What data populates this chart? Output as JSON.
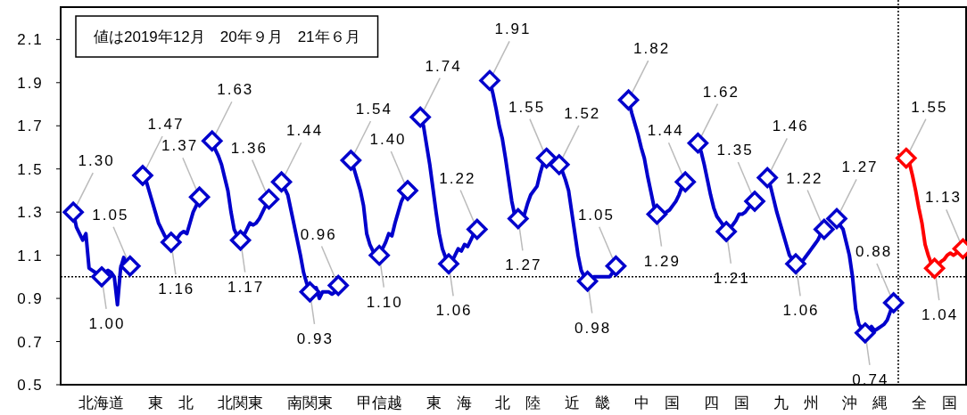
{
  "chart_data": {
    "type": "line",
    "annotations": [
      "値は2019年12月　20年９月　21年６月"
    ],
    "ylim": [
      0.5,
      2.25
    ],
    "categories": [
      null,
      null,
      null,
      null,
      null,
      null,
      null,
      null,
      null,
      "北海道",
      null,
      null,
      null,
      null,
      null,
      null,
      null,
      null,
      null,
      null,
      null,
      null,
      null,
      null,
      null,
      null,
      null,
      null,
      null,
      null,
      null,
      "東　北",
      null,
      null,
      null,
      null,
      null,
      null,
      null,
      null,
      null,
      null,
      null,
      null,
      null,
      null,
      null,
      null,
      null,
      null,
      null,
      null,
      null,
      "北関東",
      null,
      null,
      null,
      null,
      null,
      null,
      null,
      null,
      null,
      null,
      null,
      null,
      null,
      null,
      null,
      null,
      null,
      null,
      null,
      null,
      null,
      "南関東",
      null,
      null,
      null,
      null,
      null,
      null,
      null,
      null,
      null,
      null,
      null,
      null,
      null,
      null,
      null,
      null,
      null,
      null,
      null,
      null,
      null,
      "甲信越",
      null,
      null,
      null,
      null,
      null,
      null,
      null,
      null,
      null,
      null,
      null,
      null,
      null,
      null,
      null,
      null,
      null,
      null,
      null,
      null,
      null,
      "東　海",
      null,
      null,
      null,
      null,
      null,
      null,
      null,
      null,
      null,
      null,
      null,
      null,
      null,
      null,
      null,
      null,
      null,
      null,
      null,
      null,
      null,
      "北　陸",
      null,
      null,
      null,
      null,
      null,
      null,
      null,
      null,
      null,
      null,
      null,
      null,
      null,
      null,
      null,
      null,
      null,
      null,
      null,
      null,
      null,
      "近　畿",
      null,
      null,
      null,
      null,
      null,
      null,
      null,
      null,
      null,
      null,
      null,
      null,
      null,
      null,
      null,
      null,
      null,
      null,
      null,
      null,
      null,
      "中　国",
      null,
      null,
      null,
      null,
      null,
      null,
      null,
      null,
      null,
      null,
      null,
      null,
      null,
      null,
      null,
      null,
      null,
      null,
      null,
      null,
      null,
      "四　国",
      null,
      null,
      null,
      null,
      null,
      null,
      null,
      null,
      null,
      null,
      null,
      null,
      null,
      null,
      null,
      null,
      null,
      null,
      null,
      null,
      null,
      "九　州",
      null,
      null,
      null,
      null,
      null,
      null,
      null,
      null,
      null,
      null,
      null,
      null,
      null,
      null,
      null,
      null,
      null,
      null,
      null,
      null,
      null,
      "沖　縄",
      null,
      null,
      null,
      null,
      null,
      null,
      null,
      null,
      null,
      null,
      null,
      null,
      null,
      null,
      null,
      null,
      null,
      null,
      null,
      null,
      null,
      "全　国",
      null,
      null,
      null,
      null,
      null,
      null,
      null,
      null,
      null
    ],
    "yticks": [
      0.5,
      0.7,
      0.9,
      1.1,
      1.3,
      1.5,
      1.7,
      1.9,
      2.1
    ],
    "ref_lines": [
      {
        "axis": "y",
        "value": 1,
        "color": "#000000",
        "line_style": "dotted"
      }
    ],
    "series": [
      {
        "color": "#0000cc",
        "values": [
          1.3,
          1.23,
          1.2,
          1.17,
          1.2,
          1.04,
          1.03,
          1.02,
          1.01,
          1.0,
          1.02,
          1.03,
          1.02,
          1.0,
          0.87,
          1.04,
          1.09,
          1.06,
          1.05,
          null,
          null,
          null,
          1.47,
          1.45,
          1.4,
          1.35,
          1.3,
          1.25,
          1.22,
          1.19,
          1.17,
          1.16,
          1.17,
          1.18,
          1.2,
          1.21,
          1.2,
          1.25,
          1.3,
          1.33,
          1.37,
          null,
          null,
          null,
          1.63,
          1.59,
          1.56,
          1.52,
          1.46,
          1.4,
          1.3,
          1.22,
          1.19,
          1.17,
          1.19,
          1.22,
          1.25,
          1.24,
          1.25,
          1.27,
          1.3,
          1.33,
          1.36,
          null,
          null,
          null,
          1.44,
          1.41,
          1.38,
          1.31,
          1.24,
          1.17,
          1.1,
          1.02,
          0.97,
          0.93,
          0.92,
          0.95,
          0.9,
          0.93,
          0.93,
          0.93,
          0.92,
          0.93,
          0.96,
          null,
          null,
          null,
          1.54,
          1.5,
          1.45,
          1.4,
          1.33,
          1.2,
          1.15,
          1.12,
          1.11,
          1.1,
          1.13,
          1.16,
          1.2,
          1.19,
          1.25,
          1.3,
          1.35,
          1.38,
          1.4,
          null,
          null,
          null,
          1.74,
          1.7,
          1.61,
          1.52,
          1.41,
          1.3,
          1.2,
          1.13,
          1.09,
          1.06,
          1.07,
          1.1,
          1.13,
          1.12,
          1.15,
          1.14,
          1.17,
          1.2,
          1.22,
          null,
          null,
          null,
          1.91,
          1.85,
          1.78,
          1.7,
          1.64,
          1.55,
          1.45,
          1.35,
          1.28,
          1.27,
          1.28,
          1.29,
          1.34,
          1.38,
          1.4,
          1.42,
          1.48,
          1.53,
          1.55,
          null,
          null,
          null,
          1.52,
          1.49,
          1.45,
          1.4,
          1.3,
          1.2,
          1.1,
          1.03,
          1.0,
          0.98,
          0.97,
          1.0,
          1.0,
          1.0,
          1.0,
          1.0,
          1.0,
          1.02,
          1.05,
          null,
          null,
          null,
          1.82,
          1.76,
          1.71,
          1.66,
          1.6,
          1.55,
          1.47,
          1.4,
          1.33,
          1.29,
          1.28,
          1.29,
          1.3,
          1.31,
          1.33,
          1.35,
          1.38,
          1.42,
          1.44,
          null,
          null,
          null,
          1.62,
          1.58,
          1.52,
          1.45,
          1.38,
          1.32,
          1.28,
          1.26,
          1.24,
          1.21,
          1.22,
          1.24,
          1.26,
          1.29,
          1.29,
          1.3,
          1.32,
          1.33,
          1.35,
          null,
          null,
          null,
          1.46,
          1.42,
          1.36,
          1.3,
          1.25,
          1.2,
          1.15,
          1.1,
          1.08,
          1.06,
          1.06,
          1.07,
          1.09,
          1.11,
          1.13,
          1.15,
          1.17,
          1.2,
          1.22,
          null,
          null,
          null,
          1.27,
          1.24,
          1.22,
          1.16,
          1.1,
          1.0,
          0.85,
          0.78,
          0.76,
          0.74,
          0.75,
          0.77,
          0.75,
          0.76,
          0.77,
          0.78,
          0.8,
          0.84,
          0.88,
          null,
          null,
          null,
          null,
          null,
          null,
          null,
          null,
          null,
          null,
          null,
          null,
          null,
          null,
          null,
          null,
          null,
          null,
          null,
          null,
          null,
          null
        ],
        "value_labels": [
          "1.30",
          null,
          null,
          null,
          null,
          null,
          null,
          null,
          null,
          "1.00",
          null,
          null,
          null,
          null,
          null,
          null,
          null,
          null,
          "1.05",
          null,
          null,
          null,
          "1.47",
          null,
          null,
          null,
          null,
          null,
          null,
          null,
          null,
          "1.16",
          null,
          null,
          null,
          null,
          null,
          null,
          null,
          null,
          "1.37",
          null,
          null,
          null,
          "1.63",
          null,
          null,
          null,
          null,
          null,
          null,
          null,
          null,
          "1.17",
          null,
          null,
          null,
          null,
          null,
          null,
          null,
          null,
          "1.36",
          null,
          null,
          null,
          "1.44",
          null,
          null,
          null,
          null,
          null,
          null,
          null,
          null,
          "0.93",
          null,
          null,
          null,
          null,
          null,
          null,
          null,
          null,
          "0.96",
          null,
          null,
          null,
          "1.54",
          null,
          null,
          null,
          null,
          null,
          null,
          null,
          null,
          "1.10",
          null,
          null,
          null,
          null,
          null,
          null,
          null,
          null,
          "1.40",
          null,
          null,
          null,
          "1.74",
          null,
          null,
          null,
          null,
          null,
          null,
          null,
          null,
          "1.06",
          null,
          null,
          null,
          null,
          null,
          null,
          null,
          null,
          "1.22",
          null,
          null,
          null,
          "1.91",
          null,
          null,
          null,
          null,
          null,
          null,
          null,
          null,
          "1.27",
          null,
          null,
          null,
          null,
          null,
          null,
          null,
          null,
          "1.55",
          null,
          null,
          null,
          "1.52",
          null,
          null,
          null,
          null,
          null,
          null,
          null,
          null,
          "0.98",
          null,
          null,
          null,
          null,
          null,
          null,
          null,
          null,
          "1.05",
          null,
          null,
          null,
          "1.82",
          null,
          null,
          null,
          null,
          null,
          null,
          null,
          null,
          "1.29",
          null,
          null,
          null,
          null,
          null,
          null,
          null,
          null,
          "1.44",
          null,
          null,
          null,
          "1.62",
          null,
          null,
          null,
          null,
          null,
          null,
          null,
          null,
          "1.21",
          null,
          null,
          null,
          null,
          null,
          null,
          null,
          null,
          "1.35",
          null,
          null,
          null,
          "1.46",
          null,
          null,
          null,
          null,
          null,
          null,
          null,
          null,
          "1.06",
          null,
          null,
          null,
          null,
          null,
          null,
          null,
          null,
          "1.22",
          null,
          null,
          null,
          "1.27",
          null,
          null,
          null,
          null,
          null,
          null,
          null,
          null,
          "0.74",
          null,
          null,
          null,
          null,
          null,
          null,
          null,
          null,
          "0.88",
          null,
          null,
          null,
          null,
          null,
          null,
          null,
          null,
          null,
          null,
          null,
          null,
          null,
          null,
          null,
          null,
          null,
          null,
          null,
          null,
          null,
          null
        ]
      },
      {
        "color": "#ff0000",
        "values": [
          null,
          null,
          null,
          null,
          null,
          null,
          null,
          null,
          null,
          null,
          null,
          null,
          null,
          null,
          null,
          null,
          null,
          null,
          null,
          null,
          null,
          null,
          null,
          null,
          null,
          null,
          null,
          null,
          null,
          null,
          null,
          null,
          null,
          null,
          null,
          null,
          null,
          null,
          null,
          null,
          null,
          null,
          null,
          null,
          null,
          null,
          null,
          null,
          null,
          null,
          null,
          null,
          null,
          null,
          null,
          null,
          null,
          null,
          null,
          null,
          null,
          null,
          null,
          null,
          null,
          null,
          null,
          null,
          null,
          null,
          null,
          null,
          null,
          null,
          null,
          null,
          null,
          null,
          null,
          null,
          null,
          null,
          null,
          null,
          null,
          null,
          null,
          null,
          null,
          null,
          null,
          null,
          null,
          null,
          null,
          null,
          null,
          null,
          null,
          null,
          null,
          null,
          null,
          null,
          null,
          null,
          null,
          null,
          null,
          null,
          null,
          null,
          null,
          null,
          null,
          null,
          null,
          null,
          null,
          null,
          null,
          null,
          null,
          null,
          null,
          null,
          null,
          null,
          null,
          null,
          null,
          null,
          null,
          null,
          null,
          null,
          null,
          null,
          null,
          null,
          null,
          null,
          null,
          null,
          null,
          null,
          null,
          null,
          null,
          null,
          null,
          null,
          null,
          null,
          null,
          null,
          null,
          null,
          null,
          null,
          null,
          null,
          null,
          null,
          null,
          null,
          null,
          null,
          null,
          null,
          null,
          null,
          null,
          null,
          null,
          null,
          null,
          null,
          null,
          null,
          null,
          null,
          null,
          null,
          null,
          null,
          null,
          null,
          null,
          null,
          null,
          null,
          null,
          null,
          null,
          null,
          null,
          null,
          null,
          null,
          null,
          null,
          null,
          null,
          null,
          null,
          null,
          null,
          null,
          null,
          null,
          null,
          null,
          null,
          null,
          null,
          null,
          null,
          null,
          null,
          null,
          null,
          null,
          null,
          null,
          null,
          null,
          null,
          null,
          null,
          null,
          null,
          null,
          null,
          null,
          null,
          null,
          null,
          null,
          null,
          null,
          null,
          null,
          null,
          null,
          null,
          null,
          null,
          null,
          null,
          null,
          null,
          null,
          null,
          null,
          null,
          null,
          null,
          null,
          null,
          null,
          null,
          null,
          null,
          1.55,
          1.53,
          1.47,
          1.4,
          1.32,
          1.25,
          1.15,
          1.1,
          1.06,
          1.04,
          1.05,
          1.07,
          1.08,
          1.1,
          1.11,
          1.1,
          1.11,
          1.12,
          1.13
        ],
        "value_labels": [
          null,
          null,
          null,
          null,
          null,
          null,
          null,
          null,
          null,
          null,
          null,
          null,
          null,
          null,
          null,
          null,
          null,
          null,
          null,
          null,
          null,
          null,
          null,
          null,
          null,
          null,
          null,
          null,
          null,
          null,
          null,
          null,
          null,
          null,
          null,
          null,
          null,
          null,
          null,
          null,
          null,
          null,
          null,
          null,
          null,
          null,
          null,
          null,
          null,
          null,
          null,
          null,
          null,
          null,
          null,
          null,
          null,
          null,
          null,
          null,
          null,
          null,
          null,
          null,
          null,
          null,
          null,
          null,
          null,
          null,
          null,
          null,
          null,
          null,
          null,
          null,
          null,
          null,
          null,
          null,
          null,
          null,
          null,
          null,
          null,
          null,
          null,
          null,
          null,
          null,
          null,
          null,
          null,
          null,
          null,
          null,
          null,
          null,
          null,
          null,
          null,
          null,
          null,
          null,
          null,
          null,
          null,
          null,
          null,
          null,
          null,
          null,
          null,
          null,
          null,
          null,
          null,
          null,
          null,
          null,
          null,
          null,
          null,
          null,
          null,
          null,
          null,
          null,
          null,
          null,
          null,
          null,
          null,
          null,
          null,
          null,
          null,
          null,
          null,
          null,
          null,
          null,
          null,
          null,
          null,
          null,
          null,
          null,
          null,
          null,
          null,
          null,
          null,
          null,
          null,
          null,
          null,
          null,
          null,
          null,
          null,
          null,
          null,
          null,
          null,
          null,
          null,
          null,
          null,
          null,
          null,
          null,
          null,
          null,
          null,
          null,
          null,
          null,
          null,
          null,
          null,
          null,
          null,
          null,
          null,
          null,
          null,
          null,
          null,
          null,
          null,
          null,
          null,
          null,
          null,
          null,
          null,
          null,
          null,
          null,
          null,
          null,
          null,
          null,
          null,
          null,
          null,
          null,
          null,
          null,
          null,
          null,
          null,
          null,
          null,
          null,
          null,
          null,
          null,
          null,
          null,
          null,
          null,
          null,
          null,
          null,
          null,
          null,
          null,
          null,
          null,
          null,
          null,
          null,
          null,
          null,
          null,
          null,
          null,
          null,
          null,
          null,
          null,
          null,
          null,
          null,
          null,
          null,
          null,
          null,
          null,
          null,
          null,
          null,
          null,
          null,
          null,
          null,
          null,
          null,
          null,
          null,
          null,
          null,
          "1.55",
          null,
          null,
          null,
          null,
          null,
          null,
          null,
          null,
          "1.04",
          null,
          null,
          null,
          null,
          null,
          null,
          null,
          null,
          "1.13"
        ]
      }
    ]
  }
}
